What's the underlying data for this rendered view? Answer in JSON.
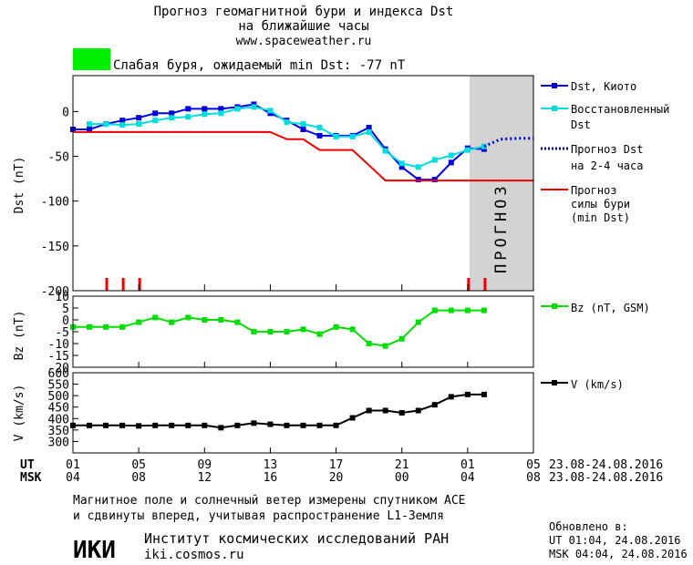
{
  "header": {
    "title_line1": "Прогноз геомагнитной бури и индекса Dst",
    "title_line2": "на ближайшие часы",
    "url": "www.spaceweather.ru",
    "storm_status": "Слабая буря, ожидаемый min Dst: -77 nT",
    "storm_color": "#00ee00"
  },
  "footer": {
    "note_line1": "Магнитное поле и солнечный ветер измерены спутником ACE",
    "note_line2": "и сдвинуты вперед, учитывая распространение L1-Земля",
    "institute": "Институт космических исследований РАН",
    "institute_url": "iki.cosmos.ru",
    "logo_text": "ИКИ",
    "updated_label": "Обновлено в:",
    "updated_ut": "UT  01:04, 24.08.2016",
    "updated_msk": "MSK 04:04, 24.08.2016"
  },
  "chart_data": [
    {
      "type": "line",
      "ylabel": "Dst (nT)",
      "ylim": [
        -200,
        40
      ],
      "y_ticks": [
        "0",
        "-50",
        "-100",
        "-150",
        "-200"
      ],
      "forecast_label": "ПРОГНОЗ",
      "series": [
        {
          "name": "Dst, Киото",
          "color": "#0000dd",
          "x": [
            0,
            1,
            2,
            3,
            4,
            5,
            6,
            7,
            8,
            9,
            10,
            11,
            12,
            13,
            14,
            15,
            16,
            17,
            18,
            19,
            20,
            21,
            22,
            23,
            24,
            25
          ],
          "y": [
            -20,
            -20,
            -14,
            -10,
            -7,
            -2,
            -2,
            3,
            3,
            3,
            5,
            8,
            -2,
            -10,
            -20,
            -27,
            -27,
            -27,
            -18,
            -42,
            -62,
            -76,
            -76,
            -57,
            -41,
            -42
          ]
        },
        {
          "name": "Восстановленный Dst",
          "color": "#00dddd",
          "x": [
            1,
            2,
            3,
            4,
            5,
            6,
            7,
            8,
            9,
            10,
            11,
            12,
            13,
            14,
            15,
            16,
            17,
            18,
            19,
            20,
            21,
            22,
            23,
            24,
            25
          ],
          "y": [
            -14,
            -14,
            -15,
            -14,
            -10,
            -7,
            -6,
            -3,
            -2,
            3,
            5,
            1,
            -12,
            -14,
            -18,
            -28,
            -28,
            -23,
            -44,
            -58,
            -62,
            -54,
            -49,
            -43,
            -39
          ]
        },
        {
          "name": "Прогноз Dst на 2-4 часа",
          "color": "#0000dd",
          "style": "dotted",
          "x": [
            25,
            26,
            27,
            28
          ],
          "y": [
            -39,
            -31,
            -30,
            -30
          ]
        },
        {
          "name": "Прогноз силы бури (min Dst)",
          "color": "#ee0000",
          "style": "step",
          "x": [
            0,
            12,
            13,
            14,
            15,
            16,
            17,
            18,
            19,
            20,
            28
          ],
          "y": [
            -23,
            -23,
            -31,
            -31,
            -43,
            -43,
            -43,
            -60,
            -77,
            -77,
            -77
          ]
        }
      ],
      "kp_markers_x": [
        2,
        3,
        4,
        24,
        25
      ],
      "legend": {
        "dst_kyoto": "Dst, Киото",
        "restored_1": "Восстановленный",
        "restored_2": "Dst",
        "forecast_1": "Прогноз Dst",
        "forecast_2": "на 2-4 часа",
        "storm_1": "Прогноз",
        "storm_2": "силы бури",
        "storm_3": "(min Dst)"
      }
    },
    {
      "type": "line",
      "ylabel": "Bz (nT)",
      "ylim": [
        -20,
        10
      ],
      "y_ticks": [
        "10",
        "5",
        "0",
        "-5",
        "-10",
        "-15",
        "-20"
      ],
      "series": [
        {
          "name": "Bz (nT, GSM)",
          "color": "#00dd00",
          "x": [
            0,
            1,
            2,
            3,
            4,
            5,
            6,
            7,
            8,
            9,
            10,
            11,
            12,
            13,
            14,
            15,
            16,
            17,
            18,
            19,
            20,
            21,
            22,
            23,
            24,
            25
          ],
          "y": [
            -3,
            -3,
            -3,
            -3,
            -1,
            1,
            -1,
            1,
            0,
            0,
            -1,
            -5,
            -5,
            -5,
            -4,
            -6,
            -3,
            -4,
            -10,
            -11,
            -8,
            -1,
            4,
            4,
            4,
            4
          ]
        }
      ],
      "legend": {
        "bz": "Bz (nT, GSM)"
      }
    },
    {
      "type": "line",
      "ylabel": "V (km/s)",
      "ylim": [
        250,
        600
      ],
      "y_ticks": [
        "600",
        "550",
        "500",
        "450",
        "400",
        "350",
        "300"
      ],
      "series": [
        {
          "name": "V (km/s)",
          "color": "#000000",
          "x": [
            0,
            1,
            2,
            3,
            4,
            5,
            6,
            7,
            8,
            9,
            10,
            11,
            12,
            13,
            14,
            15,
            16,
            17,
            18,
            19,
            20,
            21,
            22,
            23,
            24,
            25
          ],
          "y": [
            370,
            370,
            370,
            370,
            368,
            370,
            370,
            370,
            370,
            360,
            370,
            380,
            375,
            370,
            370,
            370,
            370,
            403,
            435,
            435,
            425,
            435,
            460,
            495,
            505,
            505
          ]
        }
      ],
      "legend": {
        "v": "V (km/s)"
      }
    }
  ],
  "time_axis": {
    "ut_label": "UT",
    "msk_label": "MSK",
    "ut_ticks": [
      "01",
      "05",
      "09",
      "13",
      "17",
      "21",
      "01",
      "05"
    ],
    "msk_ticks": [
      "04",
      "08",
      "12",
      "16",
      "20",
      "00",
      "04",
      "08"
    ],
    "ut_range": "23.08-24.08.2016",
    "msk_range": "23.08-24.08.2016"
  }
}
